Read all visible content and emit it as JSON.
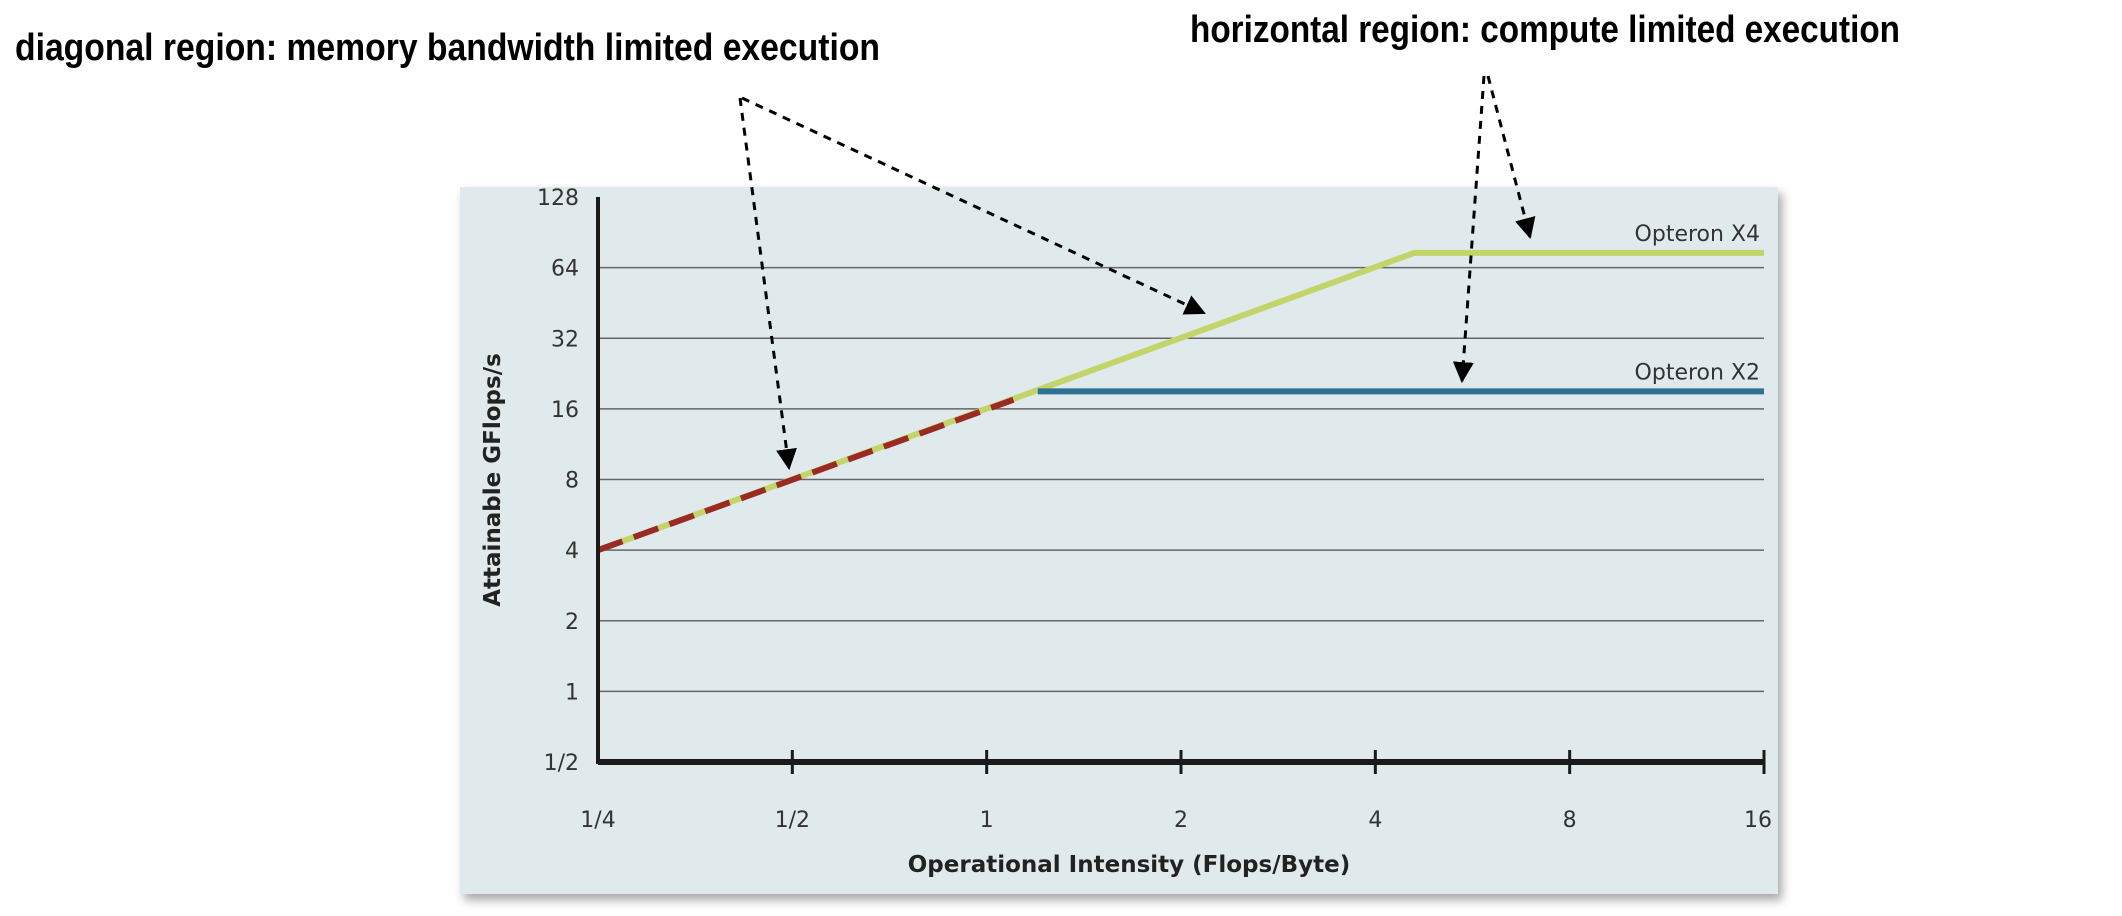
{
  "annotations": {
    "diagonal": "diagonal region: memory bandwidth limited execution",
    "horizontal": "horizontal region: compute limited execution"
  },
  "chart_data": {
    "type": "line",
    "title": "",
    "xlabel": "Operational Intensity (Flops/Byte)",
    "ylabel": "Attainable GFlops/s",
    "x_scale": "log2",
    "y_scale": "log2",
    "xlim": [
      0.25,
      16
    ],
    "ylim": [
      0.5,
      128
    ],
    "x_ticks": [
      0.25,
      0.5,
      1,
      2,
      4,
      8,
      16
    ],
    "x_tick_labels": [
      "1/4",
      "1/2",
      "1",
      "2",
      "4",
      "8",
      "16"
    ],
    "y_ticks": [
      0.5,
      1,
      2,
      4,
      8,
      16,
      32,
      64,
      128
    ],
    "y_tick_labels": [
      "1/2",
      "1",
      "2",
      "4",
      "8",
      "16",
      "32",
      "64",
      "128"
    ],
    "grid": "horizontal",
    "series": [
      {
        "name": "Opteron X4",
        "x": [
          0.25,
          4.6,
          16
        ],
        "y": [
          4,
          74,
          74
        ],
        "color": "#c3d56a",
        "style": "solid"
      },
      {
        "name": "Opteron X2",
        "x": [
          1.2,
          16
        ],
        "y": [
          19,
          19
        ],
        "color": "#2f7191",
        "style": "solid"
      },
      {
        "name": "",
        "x": [
          0.25,
          1.1
        ],
        "y": [
          4,
          17.5
        ],
        "color": "#9a2b24",
        "style": "dashed"
      }
    ]
  },
  "colors": {
    "plot_background": "#e0eaec",
    "axis": "#1a1a1a",
    "gridline": "#666666"
  }
}
